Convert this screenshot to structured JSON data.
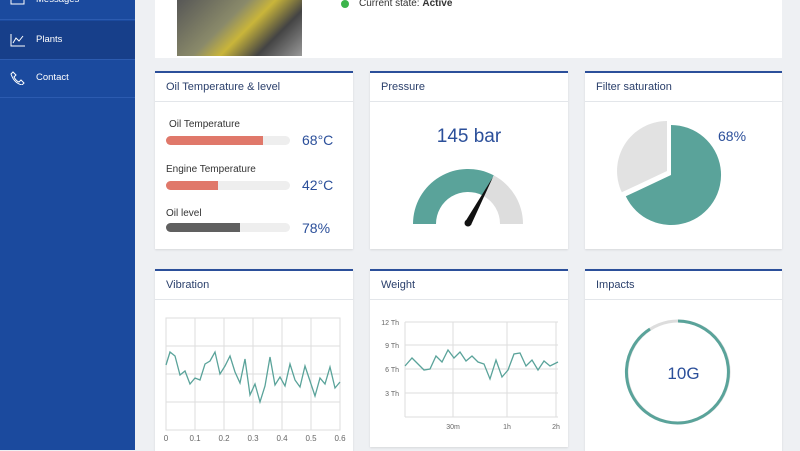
{
  "sidebar": {
    "items": [
      "Messages",
      "Plants",
      "Contact"
    ]
  },
  "status": {
    "label": "Current state:",
    "value": "Active"
  },
  "cards": {
    "oil": {
      "title": "Oil Temperature & level",
      "rows": [
        {
          "label": "Oil Temperature",
          "value": "68°C"
        },
        {
          "label": "Engine Temperature",
          "value": "42°C"
        },
        {
          "label": "Oil level",
          "value": "78%"
        }
      ]
    },
    "pressure": {
      "title": "Pressure",
      "value": "145 bar"
    },
    "filter": {
      "title": "Filter saturation",
      "value": "68%"
    },
    "vibration": {
      "title": "Vibration",
      "xticks": [
        "0",
        "0.1",
        "0.2",
        "0.3",
        "0.4",
        "0.5",
        "0.6"
      ]
    },
    "weight": {
      "title": "Weight",
      "yticks": [
        "12 Th",
        "9 Th",
        "6 Th",
        "3 Th"
      ],
      "xticks": [
        "30m",
        "1h",
        "2h"
      ]
    },
    "impacts": {
      "title": "Impacts",
      "value": "10G"
    }
  }
}
